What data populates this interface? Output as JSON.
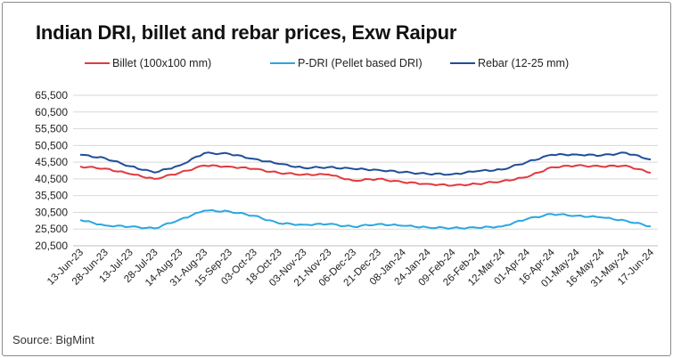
{
  "chart_data": {
    "type": "line",
    "title": "Indian DRI, billet and rebar prices, Exw Raipur",
    "source": "Source: BigMint",
    "xlabel": "",
    "ylabel": "",
    "ylim": [
      20500,
      65500
    ],
    "yticks": [
      "20,500",
      "25,500",
      "30,500",
      "35,500",
      "40,500",
      "45,500",
      "50,500",
      "55,500",
      "60,500",
      "65,500"
    ],
    "ytick_values": [
      20500,
      25500,
      30500,
      35500,
      40500,
      45500,
      50500,
      55500,
      60500,
      65500
    ],
    "categories": [
      "13-Jun-23",
      "28-Jun-23",
      "13-Jul-23",
      "28-Jul-23",
      "14-Aug-23",
      "31-Aug-23",
      "15-Sep-23",
      "03-Oct-23",
      "18-Oct-23",
      "03-Nov-23",
      "21-Nov-23",
      "06-Dec-23",
      "21-Dec-23",
      "08-Jan-24",
      "24-Jan-24",
      "09-Feb-24",
      "26-Feb-24",
      "12-Mar-24",
      "01-Apr-24",
      "16-Apr-24",
      "01-May-24",
      "16-May-24",
      "31-May-24",
      "17-Jun-24"
    ],
    "grid": true,
    "legend_position": "top",
    "series": [
      {
        "name": "Billet (100x100 mm)",
        "color": "#e03a3e",
        "values": [
          44200,
          43600,
          42000,
          40500,
          42300,
          44500,
          44200,
          43500,
          42300,
          41800,
          41800,
          40000,
          40500,
          39500,
          39000,
          38500,
          39000,
          39800,
          41000,
          44000,
          44500,
          44200,
          44500,
          42300
        ]
      },
      {
        "name": "P-DRI (Pellet based DRI)",
        "color": "#2aa7df",
        "values": [
          28200,
          26600,
          26200,
          25700,
          28300,
          31000,
          30800,
          29500,
          27200,
          26800,
          27000,
          26200,
          27000,
          26500,
          26000,
          25800,
          25900,
          26300,
          28500,
          30000,
          29500,
          29000,
          28000,
          26300
        ]
      },
      {
        "name": "Rebar (12-25 mm)",
        "color": "#1f4e98",
        "values": [
          47700,
          46700,
          44300,
          42400,
          44500,
          48200,
          48000,
          46500,
          45000,
          43800,
          44000,
          43500,
          43200,
          42500,
          42000,
          41900,
          42800,
          43300,
          45500,
          47700,
          47800,
          47500,
          48300,
          46300
        ]
      }
    ]
  }
}
